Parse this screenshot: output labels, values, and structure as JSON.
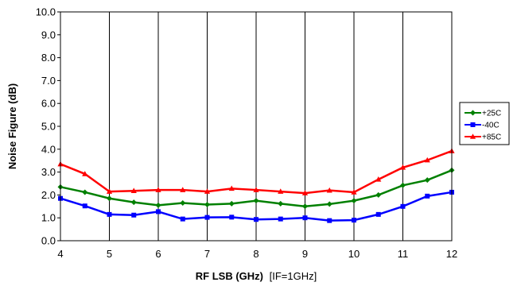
{
  "chart_data": {
    "type": "line",
    "title": "",
    "xlabel": "RF LSB (GHz)",
    "xlabel_note": "[IF=1GHz]",
    "ylabel": "Noise Figure (dB)",
    "xlim": [
      4,
      12
    ],
    "ylim": [
      0,
      10
    ],
    "x_ticks": [
      "4",
      "5",
      "6",
      "7",
      "8",
      "9",
      "10",
      "11",
      "12"
    ],
    "y_ticks": [
      "0.0",
      "1.0",
      "2.0",
      "3.0",
      "4.0",
      "5.0",
      "6.0",
      "7.0",
      "8.0",
      "9.0",
      "10.0"
    ],
    "grid": "vertical",
    "legend_position": "right",
    "x": [
      4,
      4.5,
      5,
      5.5,
      6,
      6.5,
      7,
      7.5,
      8,
      8.5,
      9,
      9.5,
      10,
      10.5,
      11,
      11.5,
      12
    ],
    "series": [
      {
        "name": "+25C",
        "color": "#008000",
        "marker": "diamond",
        "values": [
          2.35,
          2.12,
          1.85,
          1.68,
          1.55,
          1.65,
          1.58,
          1.62,
          1.75,
          1.62,
          1.5,
          1.6,
          1.75,
          2.0,
          2.42,
          2.65,
          3.08
        ]
      },
      {
        "name": "-40C",
        "color": "#0000ff",
        "marker": "square",
        "values": [
          1.85,
          1.52,
          1.15,
          1.12,
          1.27,
          0.95,
          1.02,
          1.03,
          0.93,
          0.95,
          1.0,
          0.88,
          0.9,
          1.15,
          1.5,
          1.95,
          2.12
        ]
      },
      {
        "name": "+85C",
        "color": "#ff0000",
        "marker": "triangle",
        "values": [
          3.35,
          2.92,
          2.15,
          2.18,
          2.22,
          2.22,
          2.15,
          2.28,
          2.22,
          2.15,
          2.08,
          2.2,
          2.12,
          2.68,
          3.2,
          3.52,
          3.92
        ]
      }
    ]
  }
}
